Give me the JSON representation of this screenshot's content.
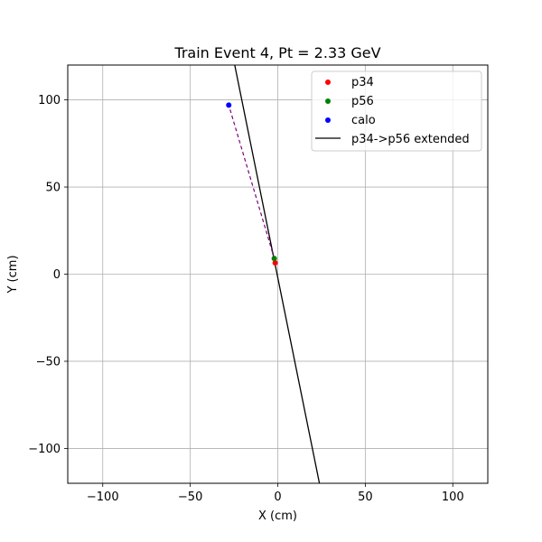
{
  "chart_data": {
    "type": "scatter",
    "title": "Train Event 4, Pt = 2.33 GeV",
    "xlabel": "X (cm)",
    "ylabel": "Y (cm)",
    "xlim": [
      -120,
      120
    ],
    "ylim": [
      -120,
      120
    ],
    "xticks": [
      -100,
      -50,
      0,
      50,
      100
    ],
    "yticks": [
      -100,
      -50,
      0,
      50,
      100
    ],
    "xtick_labels": [
      "−100",
      "−50",
      "0",
      "50",
      "100"
    ],
    "ytick_labels": [
      "−100",
      "−50",
      "0",
      "50",
      "100"
    ],
    "grid": true,
    "legend_position": "top-right",
    "series": [
      {
        "name": "p34",
        "kind": "points",
        "color": "#ff0000",
        "points": [
          [
            -1.5,
            6.5
          ]
        ]
      },
      {
        "name": "p56",
        "kind": "points",
        "color": "#008000",
        "points": [
          [
            -2.0,
            9.0
          ]
        ]
      },
      {
        "name": "calo",
        "kind": "points",
        "color": "#0000ff",
        "points": [
          [
            -28.0,
            97.0
          ]
        ]
      },
      {
        "name": "p34->p56 extended",
        "kind": "line",
        "color": "#000000",
        "points": [
          [
            -24.6,
            120.0
          ],
          [
            23.8,
            -120.0
          ]
        ]
      }
    ],
    "connector": {
      "color": "#800080",
      "dashed": true,
      "points": [
        [
          -2.0,
          9.0
        ],
        [
          -28.0,
          97.0
        ]
      ]
    }
  }
}
